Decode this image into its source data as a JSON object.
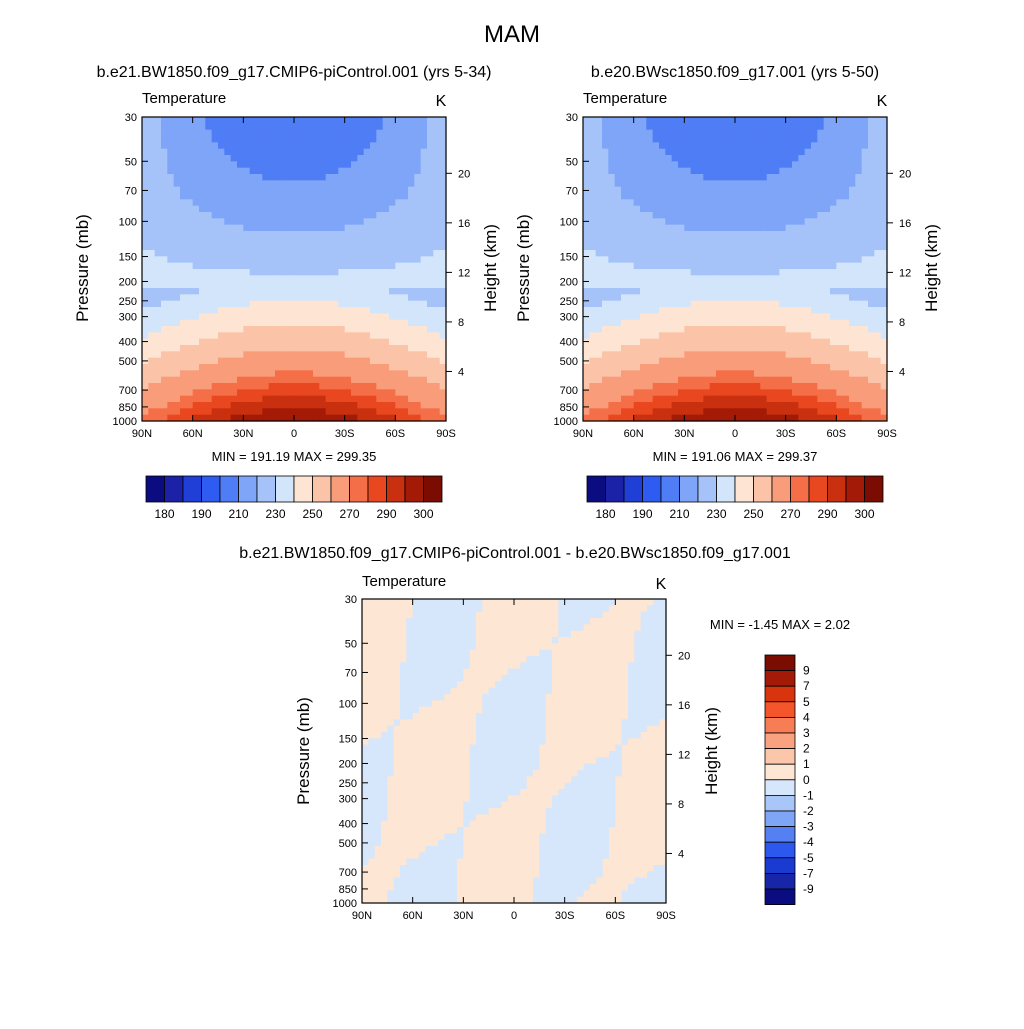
{
  "title": "MAM",
  "panels": [
    {
      "id": "p1",
      "run_title": "b.e21.BW1850.f09_g17.CMIP6-piControl.001 (yrs 5-34)",
      "field": "Temperature",
      "unit": "K",
      "y_label_left": "Pressure (mb)",
      "y_label_right": "Height (km)",
      "stats": "MIN = 191.19  MAX = 299.35",
      "color_scale": "absolute"
    },
    {
      "id": "p2",
      "run_title": "b.e20.BWsc1850.f09_g17.001 (yrs 5-50)",
      "field": "Temperature",
      "unit": "K",
      "y_label_left": "Pressure (mb)",
      "y_label_right": "Height (km)",
      "stats": "MIN = 191.06  MAX = 299.37",
      "color_scale": "absolute"
    },
    {
      "id": "p3",
      "run_title": "b.e21.BW1850.f09_g17.CMIP6-piControl.001 - b.e20.BWsc1850.f09_g17.001",
      "field": "Temperature",
      "unit": "K",
      "y_label_left": "Pressure (mb)",
      "y_label_right": "Height (km)",
      "stats": "MIN =  -1.45  MAX =   2.02",
      "color_scale": "difference"
    }
  ],
  "axes": {
    "x_ticks": [
      "90N",
      "60N",
      "30N",
      "0",
      "30S",
      "60S",
      "90S"
    ],
    "x_values": [
      90,
      60,
      30,
      0,
      -30,
      -60,
      -90
    ],
    "pressure_ticks": [
      "30",
      "50",
      "70",
      "100",
      "150",
      "200",
      "250",
      "300",
      "400",
      "500",
      "700",
      "850",
      "1000"
    ],
    "pressure_values": [
      30,
      50,
      70,
      100,
      150,
      200,
      250,
      300,
      400,
      500,
      700,
      850,
      1000
    ],
    "height_ticks": [
      "4",
      "8",
      "12",
      "16",
      "20"
    ],
    "height_values": [
      4,
      8,
      12,
      16,
      20
    ],
    "pressure_range": [
      30,
      1000
    ],
    "y_scale": "log"
  },
  "colorbar_abs": {
    "labels": [
      "180",
      "190",
      "210",
      "230",
      "250",
      "270",
      "290",
      "300"
    ],
    "colors": [
      "#0b0c7f",
      "#1b22a8",
      "#1f3fd6",
      "#2e5bf2",
      "#4f7df5",
      "#7ea5f7",
      "#a6c3f9",
      "#d3e5fb",
      "#fde4d3",
      "#fbc4a8",
      "#f89c7a",
      "#f46f48",
      "#e9471f",
      "#c9300f",
      "#a31a06",
      "#7a0c02"
    ]
  },
  "colorbar_diff": {
    "labels": [
      "9",
      "7",
      "5",
      "4",
      "3",
      "2",
      "1",
      "0",
      "-1",
      "-2",
      "-3",
      "-4",
      "-5",
      "-7",
      "-9"
    ],
    "colors": [
      "#7a0c02",
      "#a31a06",
      "#d8350f",
      "#f4552a",
      "#f67d55",
      "#f8a27f",
      "#fbc6aa",
      "#fde6d4",
      "#d7e7fb",
      "#a9c6f9",
      "#7fa6f6",
      "#5580f3",
      "#2c58ef",
      "#1b3ad2",
      "#1726a9",
      "#0b0c7f"
    ]
  },
  "chart_data": [
    {
      "type": "heatmap",
      "title": "b.e21.BW1850.f09_g17.CMIP6-piControl.001 (yrs 5-34)",
      "variable": "Temperature",
      "units": "K",
      "xlabel": "",
      "ylabel": "Pressure (mb)",
      "ylabel_right": "Height (km)",
      "xlim": [
        90,
        -90
      ],
      "ylim": [
        1000,
        30
      ],
      "min": 191.19,
      "max": 299.35,
      "contour_levels": [
        180,
        190,
        200,
        210,
        220,
        230,
        240,
        250,
        260,
        270,
        280,
        285,
        290,
        295,
        300
      ]
    },
    {
      "type": "heatmap",
      "title": "b.e20.BWsc1850.f09_g17.001 (yrs 5-50)",
      "variable": "Temperature",
      "units": "K",
      "xlabel": "",
      "ylabel": "Pressure (mb)",
      "ylabel_right": "Height (km)",
      "xlim": [
        90,
        -90
      ],
      "ylim": [
        1000,
        30
      ],
      "min": 191.06,
      "max": 299.37,
      "contour_levels": [
        180,
        190,
        200,
        210,
        220,
        230,
        240,
        250,
        260,
        270,
        280,
        285,
        290,
        295,
        300
      ]
    },
    {
      "type": "heatmap",
      "title": "b.e21.BW1850.f09_g17.CMIP6-piControl.001 - b.e20.BWsc1850.f09_g17.001",
      "variable": "Temperature",
      "units": "K",
      "xlabel": "",
      "ylabel": "Pressure (mb)",
      "ylabel_right": "Height (km)",
      "xlim": [
        90,
        -90
      ],
      "ylim": [
        1000,
        30
      ],
      "min": -1.45,
      "max": 2.02,
      "contour_levels": [
        -9,
        -7,
        -5,
        -4,
        -3,
        -2,
        -1,
        0,
        1,
        2,
        3,
        4,
        5,
        7,
        9
      ]
    }
  ]
}
